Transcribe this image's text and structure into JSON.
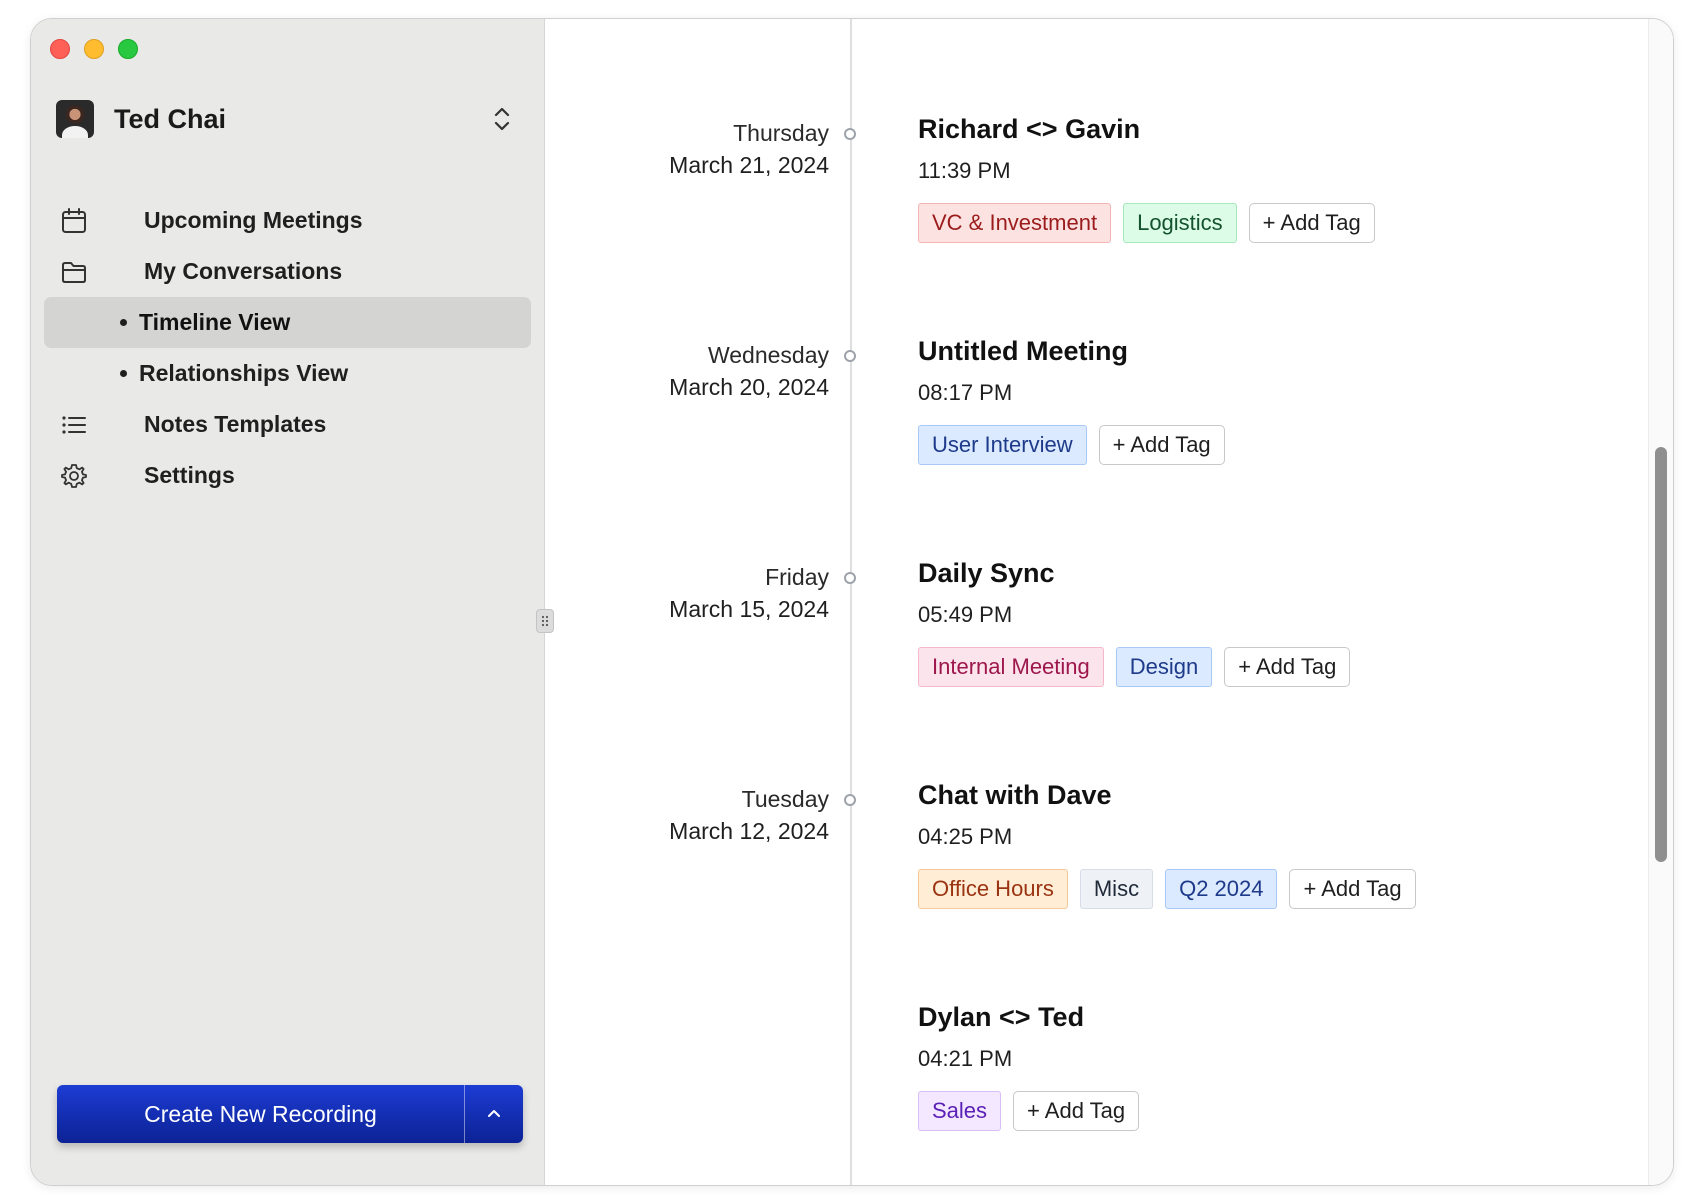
{
  "window": {
    "controls": [
      "close",
      "minimize",
      "zoom"
    ]
  },
  "sidebar": {
    "user": {
      "name": "Ted Chai"
    },
    "items": [
      {
        "label": "Upcoming Meetings",
        "icon": "calendar-icon"
      },
      {
        "label": "My Conversations",
        "icon": "folder-icon"
      }
    ],
    "sub_items": [
      {
        "label": "Timeline View",
        "active": true
      },
      {
        "label": "Relationships View",
        "active": false
      }
    ],
    "bottom_items": [
      {
        "label": "Notes Templates",
        "icon": "list-icon"
      },
      {
        "label": "Settings",
        "icon": "gear-icon"
      }
    ],
    "create_button": {
      "label": "Create New Recording"
    }
  },
  "timeline": {
    "entries": [
      {
        "weekday": "Thursday",
        "date": "March 21, 2024",
        "title": "Richard <> Gavin",
        "time": "11:39 PM",
        "tags": [
          {
            "label": "VC & Investment",
            "bg": "#fde2e2",
            "border": "#f3b4b4",
            "color": "#9b1c1c"
          },
          {
            "label": "Logistics",
            "bg": "#dcfce7",
            "border": "#a7e9bb",
            "color": "#14532d"
          }
        ]
      },
      {
        "weekday": "Wednesday",
        "date": "March 20, 2024",
        "title": "Untitled Meeting",
        "time": "08:17 PM",
        "tags": [
          {
            "label": "User Interview",
            "bg": "#dbeafe",
            "border": "#a9c8f5",
            "color": "#1e3a8a"
          }
        ]
      },
      {
        "weekday": "Friday",
        "date": "March 15, 2024",
        "title": "Daily Sync",
        "time": "05:49 PM",
        "tags": [
          {
            "label": "Internal Meeting",
            "bg": "#fce4ec",
            "border": "#f4b8c9",
            "color": "#9d174d"
          },
          {
            "label": "Design",
            "bg": "#dbeafe",
            "border": "#a9c8f5",
            "color": "#1e3a8a"
          }
        ]
      },
      {
        "weekday": "Tuesday",
        "date": "March 12, 2024",
        "title": "Chat with Dave",
        "time": "04:25 PM",
        "tags": [
          {
            "label": "Office Hours",
            "bg": "#ffedd5",
            "border": "#f6c99a",
            "color": "#9a3412"
          },
          {
            "label": "Misc",
            "bg": "#eef2f7",
            "border": "#d6dde6",
            "color": "#1f2937"
          },
          {
            "label": "Q2 2024",
            "bg": "#dbeafe",
            "border": "#a9c8f5",
            "color": "#1e3a8a"
          }
        ]
      },
      {
        "weekday": "",
        "date": "",
        "title": "Dylan <> Ted",
        "time": "04:21 PM",
        "tags": [
          {
            "label": "Sales",
            "bg": "#f3e8ff",
            "border": "#d9bdf5",
            "color": "#5b21b6"
          }
        ]
      }
    ],
    "add_tag_label": "+ Add Tag"
  }
}
